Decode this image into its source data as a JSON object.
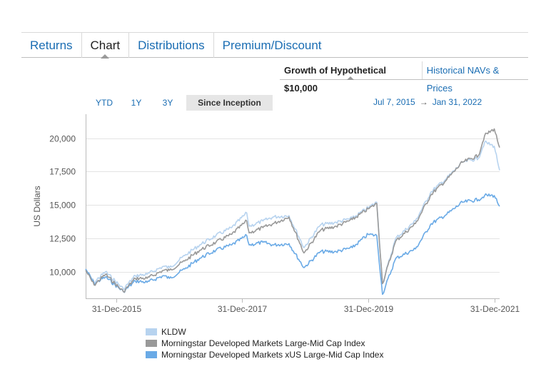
{
  "tabs": [
    {
      "label": "Returns",
      "active": false
    },
    {
      "label": "Chart",
      "active": true
    },
    {
      "label": "Distributions",
      "active": false
    },
    {
      "label": "Premium/Discount",
      "active": false
    }
  ],
  "subtabs": {
    "growth_label": "Growth of Hypothetical $10,000",
    "navs_label": "Historical NAVs & Prices"
  },
  "range_buttons": [
    {
      "label": "YTD",
      "active": false
    },
    {
      "label": "1Y",
      "active": false
    },
    {
      "label": "3Y",
      "active": false
    },
    {
      "label": "Since Inception",
      "active": true
    }
  ],
  "date_range": {
    "start": "Jul 7, 2015",
    "arrow": "→",
    "end": "Jan 31, 2022"
  },
  "colors": {
    "kldw": "#b7d3ef",
    "dev_large_mid": "#999999",
    "dev_xus": "#6aaae6",
    "link": "#1a6db3"
  },
  "chart_data": {
    "type": "line",
    "ylabel": "US Dollars",
    "xlabel": "",
    "title": "",
    "ylim": [
      8000,
      21800
    ],
    "x_tick_labels": [
      "31-Dec-2015",
      "31-Dec-2017",
      "31-Dec-2019",
      "31-Dec-2021"
    ],
    "x_ticks": [
      "2015-12-31",
      "2017-12-31",
      "2019-12-31",
      "2021-12-31"
    ],
    "y_tick_labels": [
      "10,000",
      "12,500",
      "15,000",
      "17,500",
      "20,000"
    ],
    "y_ticks": [
      10000,
      12500,
      15000,
      17500,
      20000
    ],
    "x_range": [
      "2015-07-07",
      "2022-01-31"
    ],
    "series": [
      {
        "name": "KLDW",
        "x": [
          "2015-07-07",
          "2015-08-25",
          "2015-10-30",
          "2016-02-11",
          "2016-04-20",
          "2016-06-27",
          "2016-09-30",
          "2016-11-04",
          "2017-01-31",
          "2017-04-28",
          "2017-07-31",
          "2017-10-31",
          "2018-01-26",
          "2018-02-09",
          "2018-04-30",
          "2018-06-29",
          "2018-09-28",
          "2018-12-24",
          "2019-03-29",
          "2019-06-28",
          "2019-09-30",
          "2019-12-31",
          "2020-02-19",
          "2020-03-23",
          "2020-06-08",
          "2020-09-30",
          "2020-12-31",
          "2021-03-31",
          "2021-06-30",
          "2021-09-30",
          "2021-11-05",
          "2021-12-31",
          "2022-01-31"
        ],
        "values": [
          10200,
          9200,
          10000,
          8700,
          9700,
          9800,
          10400,
          10300,
          11200,
          12000,
          12700,
          13300,
          14400,
          13400,
          13800,
          14100,
          14200,
          11800,
          13500,
          13700,
          14000,
          14800,
          15200,
          9100,
          12500,
          13800,
          16000,
          17000,
          18200,
          18500,
          19700,
          19400,
          17600
        ]
      },
      {
        "name": "Morningstar Developed Markets Large-Mid Cap Index",
        "x": [
          "2015-07-07",
          "2015-08-25",
          "2015-10-30",
          "2016-02-11",
          "2016-04-20",
          "2016-06-27",
          "2016-09-30",
          "2016-11-04",
          "2017-01-31",
          "2017-04-28",
          "2017-07-31",
          "2017-10-31",
          "2018-01-26",
          "2018-02-09",
          "2018-04-30",
          "2018-06-29",
          "2018-09-28",
          "2018-12-24",
          "2019-03-29",
          "2019-06-28",
          "2019-09-30",
          "2019-12-31",
          "2020-02-19",
          "2020-03-23",
          "2020-06-08",
          "2020-09-30",
          "2020-12-31",
          "2021-03-31",
          "2021-06-30",
          "2021-09-30",
          "2021-11-05",
          "2021-12-31",
          "2022-01-31"
        ],
        "values": [
          10100,
          9000,
          9800,
          8500,
          9500,
          9500,
          10100,
          10100,
          10800,
          11600,
          12200,
          12800,
          13800,
          12900,
          13300,
          13600,
          14100,
          11400,
          13100,
          13400,
          13900,
          14700,
          15100,
          9100,
          12300,
          13600,
          15800,
          16900,
          18200,
          18700,
          20200,
          20700,
          19300
        ]
      },
      {
        "name": "Morningstar Developed Markets xUS Large-Mid Cap Index",
        "x": [
          "2015-07-07",
          "2015-08-25",
          "2015-10-30",
          "2016-02-11",
          "2016-04-20",
          "2016-06-27",
          "2016-09-30",
          "2016-11-04",
          "2017-01-31",
          "2017-04-28",
          "2017-07-31",
          "2017-10-31",
          "2018-01-26",
          "2018-02-09",
          "2018-04-30",
          "2018-06-29",
          "2018-09-28",
          "2018-12-24",
          "2019-03-29",
          "2019-06-28",
          "2019-09-30",
          "2019-12-31",
          "2020-02-19",
          "2020-03-23",
          "2020-06-08",
          "2020-09-30",
          "2020-12-31",
          "2021-03-31",
          "2021-06-30",
          "2021-09-30",
          "2021-11-05",
          "2021-12-31",
          "2022-01-31"
        ],
        "values": [
          10200,
          9100,
          9600,
          8500,
          9300,
          9200,
          9700,
          9500,
          10200,
          11000,
          11600,
          12000,
          12700,
          12000,
          12200,
          12000,
          12100,
          10300,
          11500,
          11500,
          11800,
          12800,
          12700,
          8300,
          11000,
          11700,
          13600,
          14300,
          15200,
          15400,
          15700,
          15700,
          14900
        ]
      }
    ]
  }
}
